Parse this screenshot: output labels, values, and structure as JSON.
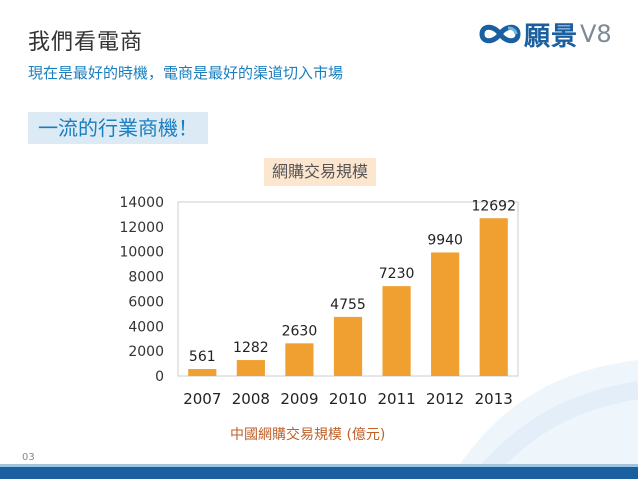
{
  "header": {
    "title": "我們看電商",
    "subtitle": "現在是最好的時機，電商是最好的渠道切入市場"
  },
  "logo": {
    "brand": "願景",
    "version": "V8",
    "accent_color": "#1a5fa0"
  },
  "badge": {
    "label": "一流的行業商機！"
  },
  "chart_data": {
    "type": "bar",
    "title": "網購交易規模",
    "categories": [
      "2007",
      "2008",
      "2009",
      "2010",
      "2011",
      "2012",
      "2013"
    ],
    "values": [
      561,
      1282,
      2630,
      4755,
      7230,
      9940,
      12692
    ],
    "ylim": [
      0,
      14000
    ],
    "yticks": [
      0,
      2000,
      4000,
      6000,
      8000,
      10000,
      12000,
      14000
    ],
    "xlabel": "中國網購交易規模 (億元)",
    "ylabel": "",
    "bar_color": "#f0a030",
    "grid": false
  },
  "footer": {
    "page_number": "03"
  }
}
